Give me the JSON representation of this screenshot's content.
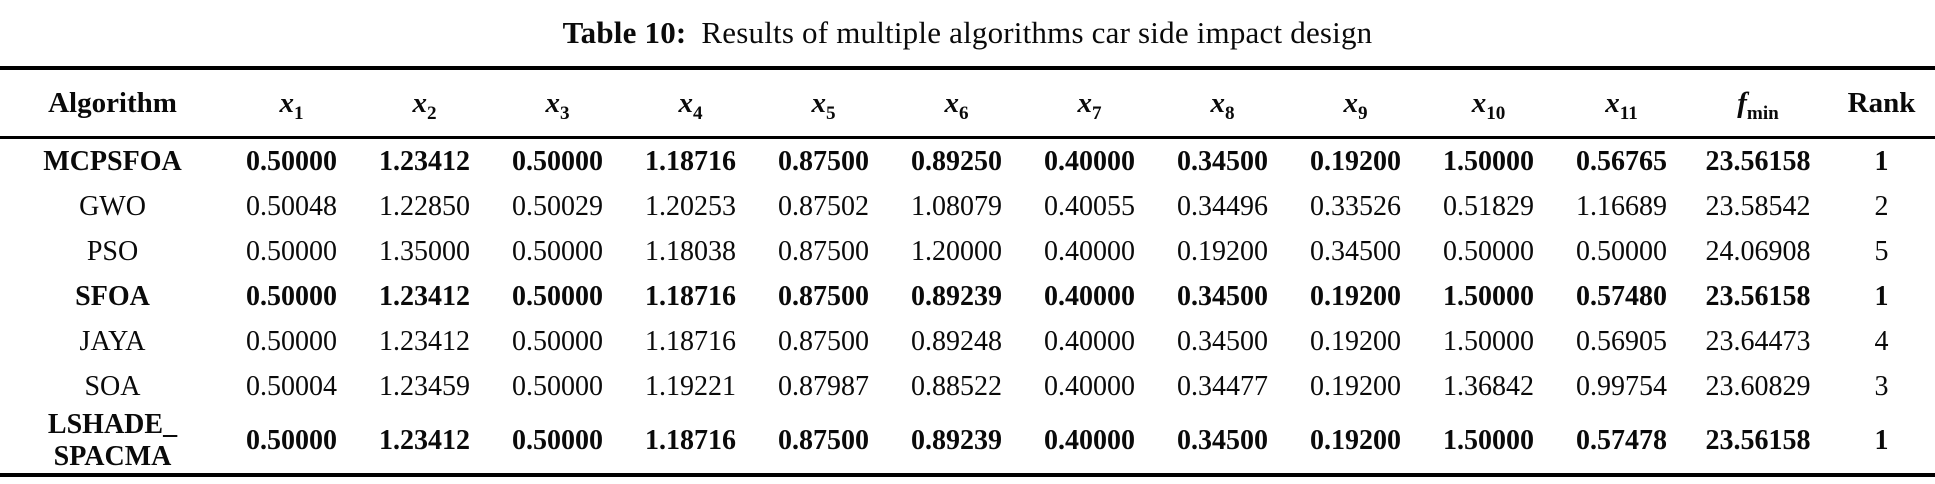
{
  "caption": {
    "label": "Table 10:",
    "text": "Results of multiple algorithms car side impact design"
  },
  "table": {
    "header": {
      "algorithm": "Algorithm",
      "variables": [
        {
          "base": "x",
          "sub": "1"
        },
        {
          "base": "x",
          "sub": "2"
        },
        {
          "base": "x",
          "sub": "3"
        },
        {
          "base": "x",
          "sub": "4"
        },
        {
          "base": "x",
          "sub": "5"
        },
        {
          "base": "x",
          "sub": "6"
        },
        {
          "base": "x",
          "sub": "7"
        },
        {
          "base": "x",
          "sub": "8"
        },
        {
          "base": "x",
          "sub": "9"
        },
        {
          "base": "x",
          "sub": "10"
        },
        {
          "base": "x",
          "sub": "11"
        },
        {
          "base": "f",
          "sub": "min"
        }
      ],
      "rank": "Rank"
    },
    "rows": [
      {
        "algorithm": [
          "MCPSFOA"
        ],
        "bold": true,
        "values": [
          "0.50000",
          "1.23412",
          "0.50000",
          "1.18716",
          "0.87500",
          "0.89250",
          "0.40000",
          "0.34500",
          "0.19200",
          "1.50000",
          "0.56765",
          "23.56158"
        ],
        "rank": "1"
      },
      {
        "algorithm": [
          "GWO"
        ],
        "bold": false,
        "values": [
          "0.50048",
          "1.22850",
          "0.50029",
          "1.20253",
          "0.87502",
          "1.08079",
          "0.40055",
          "0.34496",
          "0.33526",
          "0.51829",
          "1.16689",
          "23.58542"
        ],
        "rank": "2"
      },
      {
        "algorithm": [
          "PSO"
        ],
        "bold": false,
        "values": [
          "0.50000",
          "1.35000",
          "0.50000",
          "1.18038",
          "0.87500",
          "1.20000",
          "0.40000",
          "0.19200",
          "0.34500",
          "0.50000",
          "0.50000",
          "24.06908"
        ],
        "rank": "5"
      },
      {
        "algorithm": [
          "SFOA"
        ],
        "bold": true,
        "values": [
          "0.50000",
          "1.23412",
          "0.50000",
          "1.18716",
          "0.87500",
          "0.89239",
          "0.40000",
          "0.34500",
          "0.19200",
          "1.50000",
          "0.57480",
          "23.56158"
        ],
        "rank": "1"
      },
      {
        "algorithm": [
          "JAYA"
        ],
        "bold": false,
        "values": [
          "0.50000",
          "1.23412",
          "0.50000",
          "1.18716",
          "0.87500",
          "0.89248",
          "0.40000",
          "0.34500",
          "0.19200",
          "1.50000",
          "0.56905",
          "23.64473"
        ],
        "rank": "4"
      },
      {
        "algorithm": [
          "SOA"
        ],
        "bold": false,
        "values": [
          "0.50004",
          "1.23459",
          "0.50000",
          "1.19221",
          "0.87987",
          "0.88522",
          "0.40000",
          "0.34477",
          "0.19200",
          "1.36842",
          "0.99754",
          "23.60829"
        ],
        "rank": "3"
      },
      {
        "algorithm": [
          "LSHADE_",
          "SPACMA"
        ],
        "bold": true,
        "values": [
          "0.50000",
          "1.23412",
          "0.50000",
          "1.18716",
          "0.87500",
          "0.89239",
          "0.40000",
          "0.34500",
          "0.19200",
          "1.50000",
          "0.57478",
          "23.56158"
        ],
        "rank": "1"
      }
    ]
  }
}
